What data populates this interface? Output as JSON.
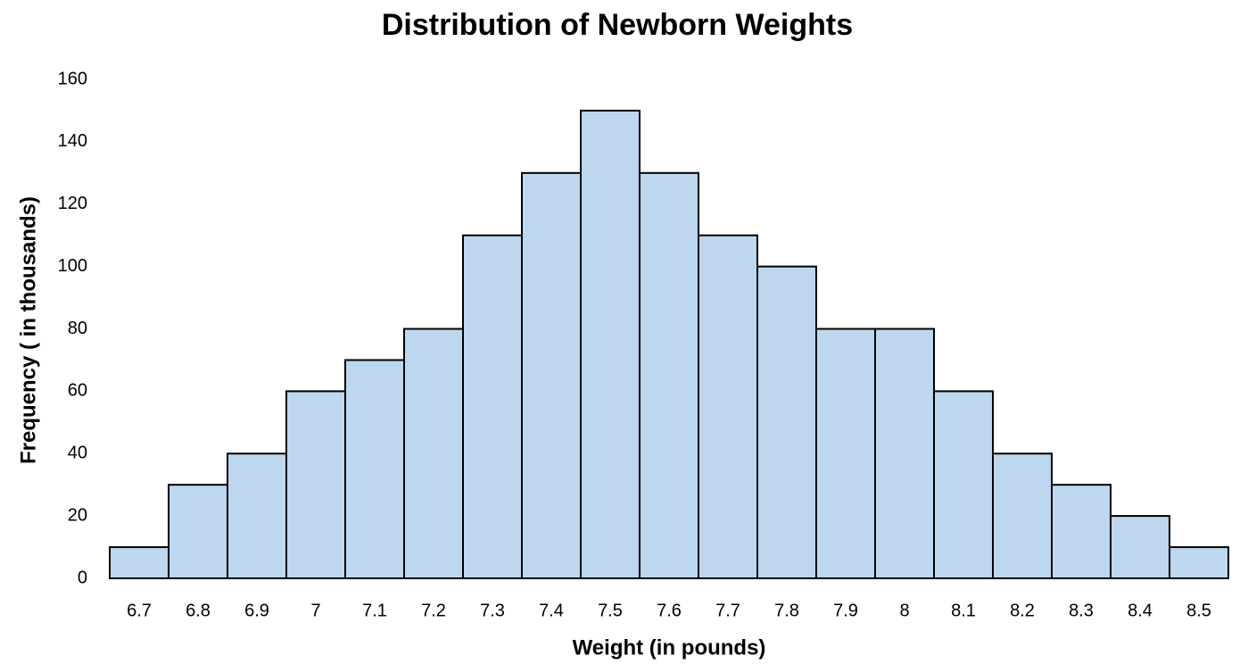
{
  "chart_data": {
    "type": "bar",
    "title": "Distribution of Newborn Weights",
    "x_label": "Weight (in pounds)",
    "y_label": "Frequency ( in thousands)",
    "categories": [
      "6.7",
      "6.8",
      "6.9",
      "7",
      "7.1",
      "7.2",
      "7.3",
      "7.4",
      "7.5",
      "7.6",
      "7.7",
      "7.8",
      "7.9",
      "8",
      "8.1",
      "8.2",
      "8.3",
      "8.4",
      "8.5"
    ],
    "values": [
      10,
      30,
      40,
      60,
      70,
      80,
      110,
      130,
      150,
      130,
      110,
      100,
      80,
      80,
      60,
      40,
      30,
      20,
      10
    ],
    "color": "#bdd7ee",
    "edge_color": "#000000",
    "ylim": [
      0,
      160
    ],
    "yticks": [
      0,
      20,
      40,
      60,
      80,
      100,
      120,
      140,
      160
    ],
    "grid": false
  }
}
